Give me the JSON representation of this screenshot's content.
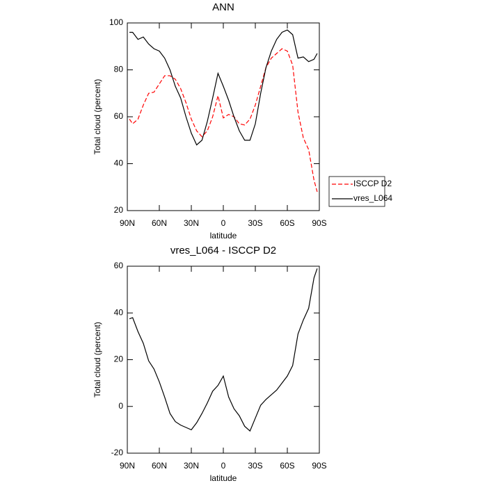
{
  "chart_data": [
    {
      "type": "line",
      "title": "ANN",
      "x_label": "latitude",
      "y_label": "Total cloud (percent)",
      "x": [
        88,
        85,
        80,
        75,
        70,
        65,
        60,
        55,
        50,
        45,
        40,
        35,
        30,
        25,
        20,
        15,
        10,
        5,
        0,
        -5,
        -10,
        -15,
        -20,
        -25,
        -30,
        -35,
        -40,
        -45,
        -50,
        -55,
        -60,
        -65,
        -70,
        -75,
        -80,
        -85,
        -88
      ],
      "xlim": [
        90,
        -90
      ],
      "xticks": [
        {
          "value": 90,
          "label": "90N"
        },
        {
          "value": 60,
          "label": "60N"
        },
        {
          "value": 30,
          "label": "30N"
        },
        0,
        {
          "value": -30,
          "label": "30S"
        },
        {
          "value": -60,
          "label": "60S"
        },
        {
          "value": -90,
          "label": "90S"
        }
      ],
      "ylim": [
        20,
        100
      ],
      "yticks": [
        20,
        40,
        60,
        80,
        100
      ],
      "legend": "right",
      "series": [
        {
          "name": "ISCCP D2",
          "color": "#ff0000",
          "dash": true,
          "values": [
            59,
            57,
            59,
            65,
            70,
            70.5,
            74,
            77.5,
            77.5,
            76,
            72,
            66,
            59,
            54,
            51.5,
            54,
            60,
            69,
            59.5,
            61,
            60,
            57,
            56.5,
            59,
            65,
            73,
            81,
            85,
            87,
            89,
            88,
            82,
            62,
            51,
            46,
            33,
            28
          ]
        },
        {
          "name": "vres_L064",
          "color": "#000000",
          "dash": false,
          "values": [
            96,
            96,
            93,
            94,
            91,
            89,
            88,
            85,
            80,
            73,
            68,
            60,
            53,
            48,
            50,
            58,
            68,
            78.5,
            73,
            67,
            60,
            54,
            50,
            50,
            57,
            70,
            81,
            88,
            93,
            96,
            97,
            95,
            85,
            85.5,
            83.5,
            84.5,
            87
          ]
        }
      ]
    },
    {
      "type": "line",
      "title": "vres_L064 - ISCCP D2",
      "x_label": "latitude",
      "y_label": "Total cloud (percent)",
      "x": [
        88,
        85,
        80,
        75,
        70,
        65,
        60,
        55,
        50,
        45,
        40,
        35,
        30,
        25,
        20,
        15,
        10,
        5,
        0,
        -5,
        -10,
        -15,
        -20,
        -25,
        -30,
        -35,
        -40,
        -45,
        -50,
        -55,
        -60,
        -65,
        -70,
        -75,
        -80,
        -85,
        -88
      ],
      "xlim": [
        90,
        -90
      ],
      "xticks": [
        {
          "value": 90,
          "label": "90N"
        },
        {
          "value": 60,
          "label": "60N"
        },
        {
          "value": 30,
          "label": "30N"
        },
        0,
        {
          "value": -30,
          "label": "30S"
        },
        {
          "value": -60,
          "label": "60S"
        },
        {
          "value": -90,
          "label": "90S"
        }
      ],
      "ylim": [
        -20,
        60
      ],
      "yticks": [
        -20,
        0,
        20,
        40,
        60
      ],
      "series": [
        {
          "color": "#000000",
          "dash": false,
          "values": [
            37.5,
            38,
            32,
            27,
            19.5,
            16,
            10.5,
            4,
            -3,
            -6.5,
            -8,
            -9,
            -10,
            -7,
            -3,
            1.5,
            6.5,
            9,
            13,
            4,
            -1,
            -4,
            -8.5,
            -10.5,
            -5,
            0.5,
            3,
            5,
            7,
            10,
            13,
            17.5,
            31,
            37,
            42,
            55,
            59
          ]
        }
      ]
    }
  ]
}
